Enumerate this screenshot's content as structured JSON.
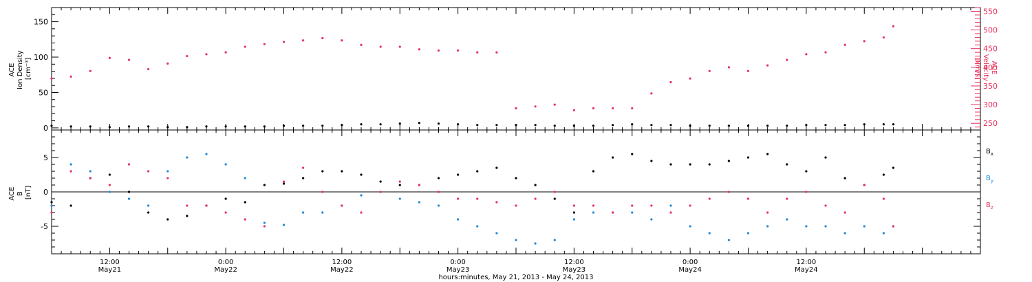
{
  "chart_data": [
    {
      "type": "scatter",
      "ylabel_lines": [
        "ACE",
        "Ion Density",
        "[cm⁻³]"
      ],
      "y2label_lines": [
        "ACE",
        "Velocity",
        "[km/s]"
      ],
      "ylim": [
        -3,
        170
      ],
      "yticks": [
        0,
        50,
        100,
        150
      ],
      "y2lim": [
        232,
        560
      ],
      "y2ticks": [
        250,
        300,
        350,
        400,
        450,
        500,
        550
      ],
      "colors": {
        "density": "#000000",
        "velocity": "#e8305a"
      },
      "series": [
        {
          "axis": "left",
          "x": [
            0,
            2,
            4,
            6,
            8,
            10,
            12,
            14,
            16,
            18,
            20,
            22,
            24,
            26,
            28,
            30,
            32,
            34,
            36,
            38,
            40,
            42,
            44,
            46,
            48,
            50,
            52,
            54,
            56,
            58,
            60,
            62,
            64,
            66,
            68,
            70,
            72,
            74,
            76,
            78,
            80,
            82,
            84,
            86,
            87
          ],
          "values": [
            3,
            2,
            2,
            1,
            2,
            2,
            1,
            1,
            2,
            2,
            2,
            2,
            3,
            3,
            3,
            4,
            5,
            5,
            6,
            7,
            6,
            5,
            4,
            4,
            4,
            4,
            3,
            3,
            3,
            4,
            5,
            4,
            4,
            3,
            3,
            3,
            3,
            3,
            3,
            4,
            4,
            4,
            5,
            5,
            5
          ]
        },
        {
          "axis": "right",
          "x": [
            0,
            2,
            4,
            6,
            8,
            10,
            12,
            14,
            16,
            18,
            20,
            22,
            24,
            26,
            28,
            30,
            32,
            34,
            36,
            38,
            40,
            42,
            44,
            46,
            48,
            50,
            52,
            54,
            56,
            58,
            60,
            62,
            64,
            66,
            68,
            70,
            72,
            74,
            76,
            78,
            80,
            82,
            84,
            86,
            87
          ],
          "values": [
            370,
            375,
            390,
            425,
            420,
            395,
            410,
            430,
            435,
            440,
            455,
            462,
            468,
            472,
            478,
            472,
            460,
            455,
            455,
            448,
            445,
            445,
            440,
            440,
            290,
            295,
            300,
            285,
            290,
            290,
            290,
            330,
            360,
            370,
            390,
            400,
            390,
            405,
            420,
            435,
            440,
            460,
            470,
            480,
            510
          ]
        }
      ]
    },
    {
      "type": "scatter",
      "ylabel_lines": [
        "ACE",
        "B",
        "[nT]"
      ],
      "ylim": [
        -9,
        9
      ],
      "yticks": [
        -5,
        0,
        5
      ],
      "colors": {
        "Bx": "#000000",
        "By": "#1e88d6",
        "Bz": "#e8305a"
      },
      "series": [
        {
          "name": "Bx",
          "x": [
            0,
            2,
            4,
            6,
            8,
            10,
            12,
            14,
            16,
            18,
            20,
            22,
            24,
            26,
            28,
            30,
            32,
            34,
            36,
            38,
            40,
            42,
            44,
            46,
            48,
            50,
            52,
            54,
            56,
            58,
            60,
            62,
            64,
            66,
            68,
            70,
            72,
            74,
            76,
            78,
            80,
            82,
            84,
            86,
            87
          ],
          "values": [
            -1.5,
            -2,
            2,
            2.5,
            0,
            -3,
            -4,
            -3.5,
            -2,
            -1,
            -1.5,
            1,
            1.2,
            2,
            3,
            3,
            2.5,
            1.5,
            1,
            1,
            2,
            2.5,
            3,
            3.5,
            2,
            1,
            -1,
            -3,
            3,
            5,
            5.5,
            4.5,
            4,
            4,
            4,
            4.5,
            5,
            5.5,
            4,
            3,
            5,
            2,
            1,
            2.5,
            3.5
          ]
        },
        {
          "name": "By",
          "x": [
            0,
            2,
            4,
            6,
            8,
            10,
            12,
            14,
            16,
            18,
            20,
            22,
            24,
            26,
            28,
            30,
            32,
            34,
            36,
            38,
            40,
            42,
            44,
            46,
            48,
            50,
            52,
            54,
            56,
            58,
            60,
            62,
            64,
            66,
            68,
            70,
            72,
            74,
            76,
            78,
            80,
            82,
            84,
            86,
            87
          ],
          "values": [
            -2,
            4,
            3,
            0,
            -1,
            -2,
            3,
            5,
            5.5,
            4,
            2,
            -4.5,
            -4.8,
            -3,
            -3,
            -2,
            -0.5,
            0,
            -1,
            -1.5,
            -2,
            -4,
            -5,
            -6,
            -7,
            -7.5,
            -7,
            -4,
            -3,
            -3,
            -3,
            -4,
            -2,
            -5,
            -6,
            -7,
            -6,
            -5,
            -4,
            -5,
            -5,
            -6,
            -5,
            -6,
            -5
          ]
        },
        {
          "name": "Bz",
          "x": [
            0,
            2,
            4,
            6,
            8,
            10,
            12,
            14,
            16,
            18,
            20,
            22,
            24,
            26,
            28,
            30,
            32,
            34,
            36,
            38,
            40,
            42,
            44,
            46,
            48,
            50,
            52,
            54,
            56,
            58,
            60,
            62,
            64,
            66,
            68,
            70,
            72,
            74,
            76,
            78,
            80,
            82,
            84,
            86,
            87
          ],
          "values": [
            -3,
            3,
            2,
            1,
            4,
            3,
            2,
            -2,
            -2,
            -3,
            -4,
            -5,
            1.5,
            3.5,
            0,
            -2,
            -3,
            0,
            1.5,
            1,
            0,
            -1,
            -1,
            -1.5,
            -2,
            -1,
            0,
            -2,
            -2,
            -3,
            -2,
            -2,
            -3,
            -2,
            -1,
            0,
            -1,
            -3,
            -1,
            0,
            -2,
            -3,
            1,
            -1,
            -5
          ]
        }
      ]
    }
  ],
  "legend": [
    {
      "base": "B",
      "sub": "x",
      "color": "#000000"
    },
    {
      "base": "B",
      "sub": "y",
      "color": "#1e88d6"
    },
    {
      "base": "B",
      "sub": "z",
      "color": "#e8305a"
    }
  ],
  "time_axis": {
    "xlim_hours": [
      0,
      96
    ],
    "ticks": [
      {
        "x": 6,
        "time": "12:00",
        "date": "May21"
      },
      {
        "x": 18,
        "time": "0:00",
        "date": "May22"
      },
      {
        "x": 30,
        "time": "12:00",
        "date": "May22"
      },
      {
        "x": 42,
        "time": "0:00",
        "date": "May23"
      },
      {
        "x": 54,
        "time": "12:00",
        "date": "May23"
      },
      {
        "x": 66,
        "time": "0:00",
        "date": "May24"
      },
      {
        "x": 78,
        "time": "12:00",
        "date": "May24"
      }
    ],
    "xlabel": "hours:minutes, May 21, 2013 - May 24, 2013"
  }
}
